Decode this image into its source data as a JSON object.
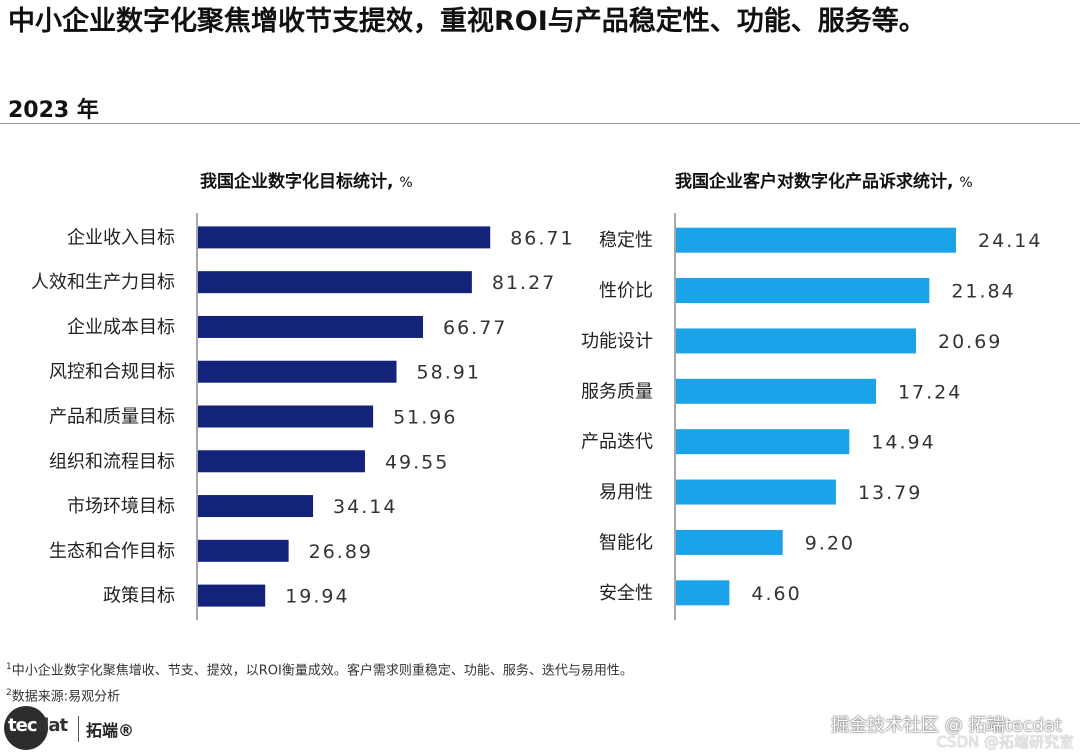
{
  "header": {
    "title": "中小企业数字化聚焦增收节支提效，重视ROI与产品稳定性、功能、服务等。",
    "year": "2023 年"
  },
  "chart_data": [
    {
      "type": "bar",
      "orientation": "horizontal",
      "title": "我国企业数字化目标统计,",
      "unit": "%",
      "categories": [
        "企业收入目标",
        "人效和生产力目标",
        "企业成本目标",
        "风控和合规目标",
        "产品和质量目标",
        "组织和流程目标",
        "市场环境目标",
        "生态和合作目标",
        "政策目标"
      ],
      "values": [
        86.71,
        81.27,
        66.77,
        58.91,
        51.96,
        49.55,
        34.14,
        26.89,
        19.94
      ],
      "value_labels": [
        "86.71",
        "81.27",
        "66.77",
        "58.91",
        "51.96",
        "49.55",
        "34.14",
        "26.89",
        "19.94"
      ],
      "color": "#14237a",
      "xlim": [
        0,
        100
      ]
    },
    {
      "type": "bar",
      "orientation": "horizontal",
      "title": "我国企业客户对数字化产品诉求统计,",
      "unit": "%",
      "categories": [
        "稳定性",
        "性价比",
        "功能设计",
        "服务质量",
        "产品迭代",
        "易用性",
        "智能化",
        "安全性"
      ],
      "values": [
        24.14,
        21.84,
        20.69,
        17.24,
        14.94,
        13.79,
        9.2,
        4.6
      ],
      "value_labels": [
        "24.14",
        "21.84",
        "20.69",
        "17.24",
        "14.94",
        "13.79",
        "9.20",
        "4.60"
      ],
      "color": "#1aa3e8",
      "xlim": [
        0,
        30
      ]
    }
  ],
  "footnotes": {
    "note1_mark": "1",
    "note1": "中小企业数字化聚焦增收、节支、提效，以ROI衡量成效。客户需求则重稳定、功能、服务、迭代与易用性。",
    "note2_mark": "2",
    "note2": "数据来源:易观分析"
  },
  "branding": {
    "logo_part1": "tec",
    "logo_part2": "dat",
    "brand": "拓端®"
  },
  "watermark": {
    "line1": "掘金技术社区 @ 拓端tecdat",
    "line2": "CSDN @拓端研究室"
  }
}
